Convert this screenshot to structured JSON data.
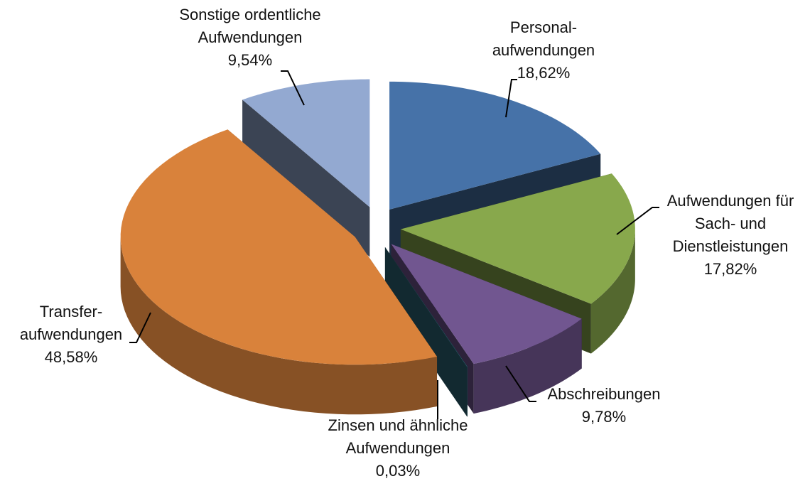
{
  "chart_data": {
    "type": "pie",
    "categories": [
      "Personal-\naufwendungen",
      "Aufwendungen für\nSach- und\nDienstleistungen",
      "Abschreibungen",
      "Zinsen und ähnliche\nAufwendungen",
      "Transfer-\naufwendungen",
      "Sonstige ordentliche\nAufwendungen"
    ],
    "values": [
      18.62,
      17.82,
      9.78,
      0.03,
      48.58,
      9.54
    ],
    "value_labels": [
      "18,62%",
      "17,82%",
      "9,78%",
      "0,03%",
      "48,58%",
      "9,54%"
    ],
    "colors": [
      "#4672a8",
      "#88a84c",
      "#715690",
      "#2e6777",
      "#d9823b",
      "#93a9d1"
    ]
  }
}
